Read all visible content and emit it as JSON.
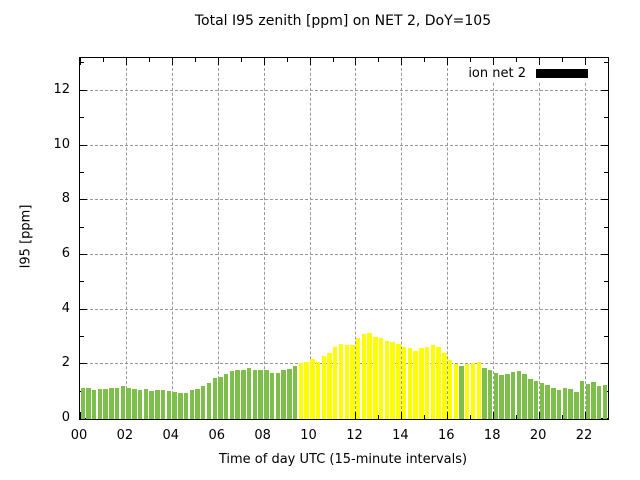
{
  "title": "Total I95 zenith [ppm] on NET 2, DoY=105",
  "legend": {
    "label": "ion net 2",
    "swatch_color": "#000000",
    "position": "top-right-inside"
  },
  "colors": {
    "green": "#7EBE4A",
    "yellow": "#FFFF00",
    "axis": "#000000",
    "grid": "#999999",
    "background": "#FFFFFF"
  },
  "chart_data": {
    "type": "bar",
    "title": "Total I95 zenith [ppm] on NET 2, DoY=105",
    "xlabel": "Time of day UTC (15-minute intervals)",
    "ylabel": "I95 [ppm]",
    "legend_entries": [
      "ion net 2"
    ],
    "grid": true,
    "xlim_hours": [
      0,
      23
    ],
    "ylim": [
      0,
      13.2
    ],
    "xtick_hours": [
      0,
      2,
      4,
      6,
      8,
      10,
      12,
      14,
      16,
      18,
      20,
      22
    ],
    "xtick_labels": [
      "00",
      "02",
      "04",
      "06",
      "08",
      "10",
      "12",
      "14",
      "16",
      "18",
      "20",
      "22"
    ],
    "xtick_minor_hours": [
      1,
      3,
      5,
      7,
      9,
      11,
      13,
      15,
      17,
      19,
      21
    ],
    "ytick_values": [
      0,
      2,
      4,
      6,
      8,
      10,
      12
    ],
    "ytick_labels": [
      "0",
      "2",
      "4",
      "6",
      "8",
      "10",
      "12"
    ],
    "ytick_minor_values": [
      1,
      3,
      5,
      7,
      9,
      11,
      13
    ],
    "interval_minutes": 15,
    "x": [
      "00:00",
      "00:15",
      "00:30",
      "00:45",
      "01:00",
      "01:15",
      "01:30",
      "01:45",
      "02:00",
      "02:15",
      "02:30",
      "02:45",
      "03:00",
      "03:15",
      "03:30",
      "03:45",
      "04:00",
      "04:15",
      "04:30",
      "04:45",
      "05:00",
      "05:15",
      "05:30",
      "05:45",
      "06:00",
      "06:15",
      "06:30",
      "06:45",
      "07:00",
      "07:15",
      "07:30",
      "07:45",
      "08:00",
      "08:15",
      "08:30",
      "08:45",
      "09:00",
      "09:15",
      "09:30",
      "09:45",
      "10:00",
      "10:15",
      "10:30",
      "10:45",
      "11:00",
      "11:15",
      "11:30",
      "11:45",
      "12:00",
      "12:15",
      "12:30",
      "12:45",
      "13:00",
      "13:15",
      "13:30",
      "13:45",
      "14:00",
      "14:15",
      "14:30",
      "14:45",
      "15:00",
      "15:15",
      "15:30",
      "15:45",
      "16:00",
      "16:15",
      "16:30",
      "16:45",
      "17:00",
      "17:15",
      "17:30",
      "17:45",
      "18:00",
      "18:15",
      "18:30",
      "18:45",
      "19:00",
      "19:15",
      "19:30",
      "19:45",
      "20:00",
      "20:15",
      "20:30",
      "20:45",
      "21:00",
      "21:15",
      "21:30",
      "21:45",
      "22:00",
      "22:15",
      "22:30",
      "22:45"
    ],
    "values": [
      1.15,
      1.15,
      1.05,
      1.1,
      1.1,
      1.12,
      1.12,
      1.2,
      1.15,
      1.1,
      1.07,
      1.1,
      1.03,
      1.06,
      1.05,
      1.02,
      1.0,
      0.95,
      0.95,
      1.05,
      1.1,
      1.2,
      1.3,
      1.5,
      1.55,
      1.65,
      1.75,
      1.78,
      1.8,
      1.85,
      1.8,
      1.78,
      1.8,
      1.7,
      1.67,
      1.78,
      1.82,
      1.95,
      2.05,
      2.1,
      2.18,
      2.1,
      2.3,
      2.4,
      2.65,
      2.75,
      2.7,
      2.7,
      2.95,
      3.1,
      3.15,
      3.0,
      2.98,
      2.87,
      2.8,
      2.76,
      2.65,
      2.58,
      2.5,
      2.6,
      2.65,
      2.7,
      2.65,
      2.4,
      2.15,
      2.0,
      1.95,
      2.0,
      2.04,
      2.07,
      1.88,
      1.78,
      1.68,
      1.6,
      1.63,
      1.72,
      1.75,
      1.66,
      1.48,
      1.4,
      1.3,
      1.24,
      1.12,
      1.05,
      1.12,
      1.08,
      1.0,
      1.4,
      1.27,
      1.35,
      1.22,
      1.25
    ],
    "bar_colors": [
      "green",
      "green",
      "green",
      "green",
      "green",
      "green",
      "green",
      "green",
      "green",
      "green",
      "green",
      "green",
      "green",
      "green",
      "green",
      "green",
      "green",
      "green",
      "green",
      "green",
      "green",
      "green",
      "green",
      "green",
      "green",
      "green",
      "green",
      "green",
      "green",
      "green",
      "green",
      "green",
      "green",
      "green",
      "green",
      "green",
      "green",
      "green",
      "yellow",
      "yellow",
      "yellow",
      "yellow",
      "yellow",
      "yellow",
      "yellow",
      "yellow",
      "yellow",
      "yellow",
      "yellow",
      "yellow",
      "yellow",
      "yellow",
      "yellow",
      "yellow",
      "yellow",
      "yellow",
      "yellow",
      "yellow",
      "yellow",
      "yellow",
      "yellow",
      "yellow",
      "yellow",
      "yellow",
      "yellow",
      "yellow",
      "green",
      "yellow",
      "yellow",
      "yellow",
      "green",
      "green",
      "green",
      "green",
      "green",
      "green",
      "green",
      "green",
      "green",
      "green",
      "green",
      "green",
      "green",
      "green",
      "green",
      "green",
      "green",
      "green",
      "green",
      "green",
      "green",
      "green"
    ]
  }
}
